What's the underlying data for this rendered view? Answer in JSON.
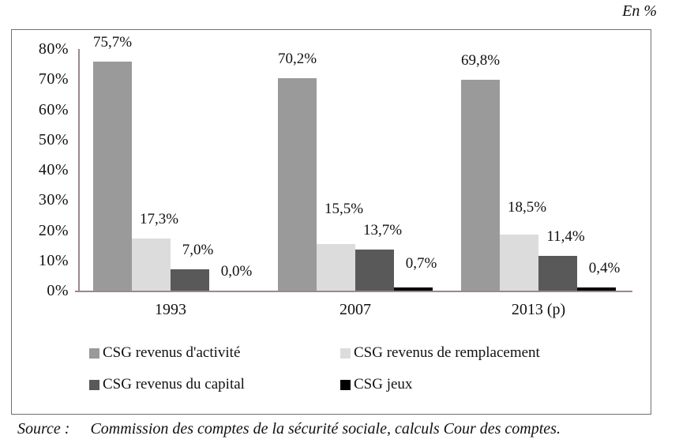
{
  "header": {
    "unit_label": "En %"
  },
  "chart_data": {
    "type": "bar",
    "title": "",
    "categories": [
      "1993",
      "2007",
      "2013 (p)"
    ],
    "series": [
      {
        "name": "CSG revenus d'activité",
        "color": "#9a9a9a",
        "values": [
          75.7,
          70.2,
          69.8
        ]
      },
      {
        "name": "CSG revenus de remplacement",
        "color": "#dcdcdc",
        "values": [
          17.3,
          15.5,
          18.5
        ]
      },
      {
        "name": "CSG revenus du capital",
        "color": "#595959",
        "values": [
          7.0,
          13.7,
          11.4
        ]
      },
      {
        "name": "CSG jeux",
        "color": "#000000",
        "values": [
          0.0,
          0.7,
          0.4
        ]
      }
    ],
    "xlabel": "",
    "ylabel": "En %",
    "ylim": [
      0,
      80
    ],
    "y_ticks": [
      0,
      10,
      20,
      30,
      40,
      50,
      60,
      70,
      80
    ],
    "y_tick_suffix": "%",
    "value_label_format": "comma-decimal-percent",
    "grid": false,
    "legend_position": "bottom",
    "axis_color": "#9a8888"
  },
  "source": {
    "prefix": "Source :",
    "text": "Commission des comptes de la sécurité sociale, calculs Cour des comptes."
  }
}
